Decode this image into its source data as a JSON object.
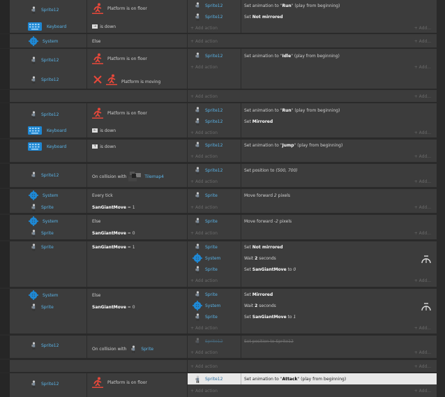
{
  "colors": {
    "object": "#5ab4e8",
    "bg": "#3c3c3c"
  },
  "labels": {
    "add_action": "Add action",
    "add": "Add..."
  },
  "ev1": {
    "c1_obj": "Sprite12",
    "c1_text": "Platform is on floor",
    "c2_obj": "Keyboard",
    "c2_key": "→",
    "c2_text": "is down",
    "a1_obj": "Sprite12",
    "a1_pre": "Set animation to \"",
    "a1_b": "Run",
    "a1_post": "\" (play from beginning)",
    "a2_obj": "Sprite12",
    "a2_pre": "Set ",
    "a2_b": "Not mirrored"
  },
  "ev2": {
    "c_obj": "System",
    "c_text": "Else"
  },
  "ev3": {
    "c1_obj": "Sprite12",
    "c1_text": "Platform is on floor",
    "c2_obj": "Sprite12",
    "c2_text": "Platform is moving",
    "a1_obj": "Sprite12",
    "a1_pre": "Set animation to \"",
    "a1_b": "Idle",
    "a1_post": "\" (play from beginning)"
  },
  "ev5": {
    "c1_obj": "Sprite12",
    "c1_text": "Platform is on floor",
    "c2_obj": "Keyboard",
    "c2_key": "←",
    "c2_text": "is down",
    "a1_obj": "Sprite12",
    "a1_pre": "Set animation to \"",
    "a1_b": "Run",
    "a1_post": "\" (play from beginning)",
    "a2_obj": "Sprite12",
    "a2_pre": "Set ",
    "a2_b": "Mirrored"
  },
  "ev6": {
    "c_obj": "Keyboard",
    "c_key": "↑",
    "c_text": "is down",
    "a1_obj": "Sprite12",
    "a1_pre": "Set animation to \"",
    "a1_b": "Jump",
    "a1_post": "\" (play from beginning)"
  },
  "ev7": {
    "c_obj": "Sprite12",
    "c_text": "On collision with",
    "c_target": "Tilemap4",
    "a1_obj": "Sprite12",
    "a1_pre": "Set position to ",
    "a1_i": "(500, 700)"
  },
  "ev8": {
    "c1_obj": "System",
    "c1_text": "Every tick",
    "c2_obj": "Sprite",
    "c2_b": "SanGiantMove",
    "c2_post": " = 1",
    "a1_obj": "Sprite",
    "a1_pre": "Move forward ",
    "a1_i": "2",
    "a1_post": " pixels"
  },
  "ev9": {
    "c1_obj": "System",
    "c1_text": "Else",
    "c2_obj": "Sprite",
    "c2_b": "SanGiantMove",
    "c2_post": " = 0",
    "a1_obj": "Sprite",
    "a1_pre": "Move forward ",
    "a1_i": "-2",
    "a1_post": " pixels"
  },
  "ev10": {
    "c_obj": "Sprite",
    "c_b": "SanGiantMove",
    "c_post": " = 1",
    "a1_obj": "Sprite",
    "a1_pre": "Set ",
    "a1_b": "Not mirrored",
    "a2_obj": "System",
    "a2_pre": "Wait ",
    "a2_b": "2",
    "a2_post": " seconds",
    "a3_obj": "Sprite",
    "a3_pre": "Set ",
    "a3_b": "SanGiantMove",
    "a3_post": " to ",
    "a3_i": "0"
  },
  "ev11": {
    "c1_obj": "System",
    "c1_text": "Else",
    "c2_obj": "Sprite",
    "c2_b": "SanGiantMove",
    "c2_post": " = 0",
    "a1_obj": "Sprite",
    "a1_pre": "Set ",
    "a1_b": "Mirrored",
    "a2_obj": "System",
    "a2_pre": "Wait ",
    "a2_b": "2",
    "a2_post": " seconds",
    "a3_obj": "Sprite",
    "a3_pre": "Set ",
    "a3_b": "SanGiantMove",
    "a3_post": " to ",
    "a3_i": "1"
  },
  "ev12": {
    "c_obj": "Sprite12",
    "c_text": "On collision with",
    "c_target": "Sprite",
    "a1_obj": "Sprite12",
    "a1_text": "Set position to Sprite12"
  },
  "ev14": {
    "c_obj": "Sprite12",
    "c_text": "Platform is on floor",
    "a1_obj": "Sprite12",
    "a1_pre": "Set animation to \"",
    "a1_b": "Attack",
    "a1_post": "\" (play from beginning)"
  }
}
